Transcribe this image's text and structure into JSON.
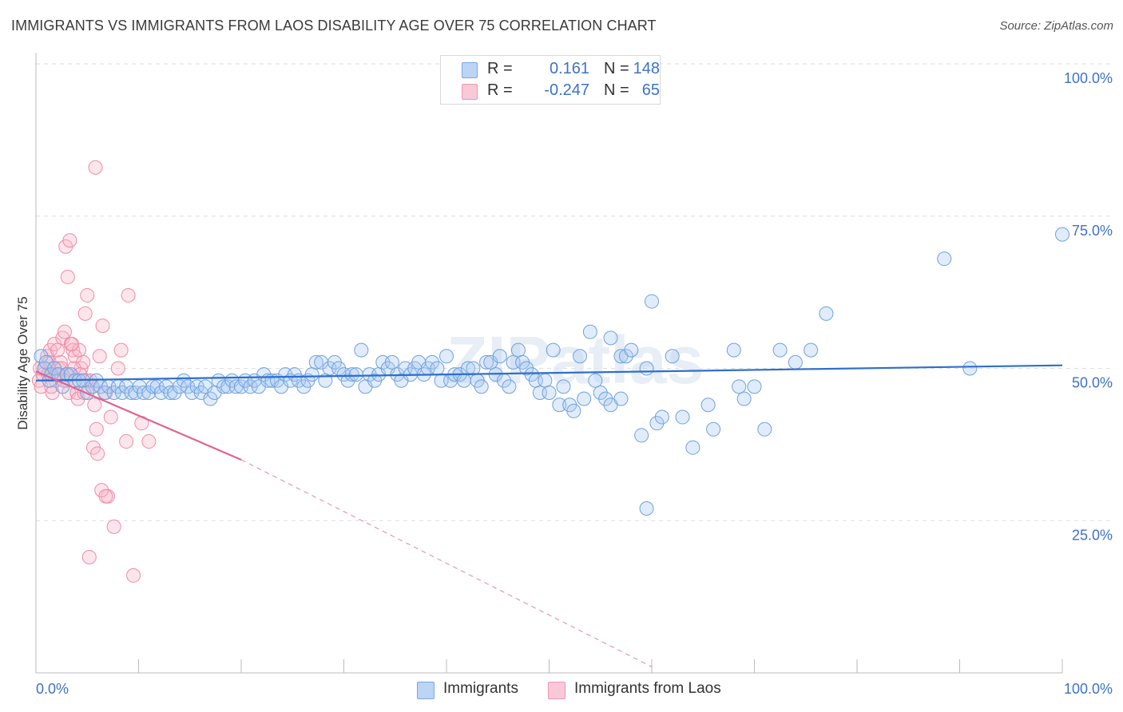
{
  "title": "IMMIGRANTS VS IMMIGRANTS FROM LAOS DISABILITY AGE OVER 75 CORRELATION CHART",
  "source": "Source: ZipAtlas.com",
  "watermark": "ZIPatlas",
  "legend": {
    "rows": [
      {
        "r_label": "R =",
        "r_value": "0.161",
        "n_label": "N =",
        "n_value": "148",
        "color": "#a9c8f0"
      },
      {
        "r_label": "R =",
        "r_value": "-0.247",
        "n_label": "N =",
        "n_value": "65",
        "color": "#f6b6c9"
      }
    ]
  },
  "bottom_legend": {
    "immigrants": "Immigrants",
    "laos": "Immigrants from Laos"
  },
  "chart_data": {
    "type": "scatter",
    "xlabel": "",
    "ylabel": "Disability Age Over 75",
    "xlim": [
      0,
      100
    ],
    "ylim": [
      0,
      100
    ],
    "x_tick_labels": {
      "left": "0.0%",
      "right": "100.0%"
    },
    "y_tick_labels": [
      "100.0%",
      "75.0%",
      "50.0%",
      "25.0%"
    ],
    "y_tick_values": [
      100,
      75,
      50,
      25
    ],
    "grid": true,
    "legend_position": "top-center",
    "series": [
      {
        "name": "Immigrants",
        "color": "#6fa1e0",
        "line_color": "#2e6fcc",
        "trend": {
          "x": [
            0,
            100
          ],
          "y": [
            48.0,
            50.5
          ]
        },
        "points": [
          [
            0.5,
            52
          ],
          [
            0.8,
            50
          ],
          [
            1.0,
            51
          ],
          [
            1.3,
            48
          ],
          [
            1.5,
            49
          ],
          [
            1.8,
            50
          ],
          [
            2.2,
            49
          ],
          [
            2.6,
            47
          ],
          [
            3.0,
            49
          ],
          [
            3.4,
            49
          ],
          [
            3.8,
            48
          ],
          [
            4.2,
            48
          ],
          [
            4.6,
            48
          ],
          [
            5.0,
            46
          ],
          [
            5.5,
            47
          ],
          [
            5.9,
            48
          ],
          [
            6.3,
            47
          ],
          [
            6.7,
            46
          ],
          [
            7.1,
            47
          ],
          [
            7.6,
            46
          ],
          [
            8.0,
            47
          ],
          [
            8.4,
            46
          ],
          [
            8.8,
            47
          ],
          [
            9.3,
            46
          ],
          [
            9.7,
            46
          ],
          [
            10.1,
            47
          ],
          [
            10.5,
            46
          ],
          [
            11.0,
            46
          ],
          [
            11.4,
            47
          ],
          [
            11.8,
            47
          ],
          [
            12.2,
            46
          ],
          [
            12.7,
            47
          ],
          [
            13.1,
            46
          ],
          [
            13.5,
            46
          ],
          [
            14.0,
            47
          ],
          [
            14.4,
            48
          ],
          [
            14.8,
            47
          ],
          [
            15.2,
            46
          ],
          [
            15.7,
            47
          ],
          [
            16.1,
            46
          ],
          [
            16.5,
            47
          ],
          [
            17.0,
            45
          ],
          [
            17.4,
            46
          ],
          [
            17.8,
            48
          ],
          [
            18.3,
            47
          ],
          [
            18.7,
            47
          ],
          [
            19.1,
            48
          ],
          [
            19.5,
            47
          ],
          [
            20.0,
            47
          ],
          [
            20.4,
            48
          ],
          [
            20.9,
            47
          ],
          [
            21.3,
            48
          ],
          [
            21.7,
            47
          ],
          [
            22.2,
            49
          ],
          [
            22.6,
            48
          ],
          [
            23.0,
            48
          ],
          [
            23.5,
            48
          ],
          [
            23.9,
            47
          ],
          [
            24.3,
            49
          ],
          [
            24.8,
            48
          ],
          [
            25.2,
            49
          ],
          [
            25.6,
            48
          ],
          [
            26.1,
            47
          ],
          [
            26.5,
            48
          ],
          [
            26.9,
            49
          ],
          [
            27.3,
            51
          ],
          [
            27.8,
            51
          ],
          [
            28.2,
            48
          ],
          [
            28.6,
            50
          ],
          [
            29.1,
            51
          ],
          [
            29.5,
            50
          ],
          [
            30.0,
            49
          ],
          [
            30.4,
            48
          ],
          [
            30.8,
            49
          ],
          [
            31.2,
            49
          ],
          [
            31.7,
            53
          ],
          [
            32.1,
            47
          ],
          [
            32.5,
            49
          ],
          [
            33.0,
            48
          ],
          [
            33.4,
            49
          ],
          [
            33.8,
            51
          ],
          [
            34.3,
            50
          ],
          [
            34.7,
            51
          ],
          [
            35.2,
            49
          ],
          [
            35.6,
            48
          ],
          [
            36.0,
            50
          ],
          [
            36.5,
            49
          ],
          [
            36.9,
            50
          ],
          [
            37.3,
            51
          ],
          [
            37.8,
            49
          ],
          [
            38.2,
            50
          ],
          [
            38.6,
            51
          ],
          [
            39.1,
            50
          ],
          [
            39.5,
            48
          ],
          [
            40.0,
            52
          ],
          [
            40.4,
            48
          ],
          [
            40.8,
            49
          ],
          [
            41.3,
            49
          ],
          [
            41.7,
            48
          ],
          [
            42.1,
            50
          ],
          [
            42.6,
            50
          ],
          [
            43.0,
            48
          ],
          [
            43.4,
            47
          ],
          [
            43.9,
            51
          ],
          [
            44.3,
            51
          ],
          [
            44.8,
            49
          ],
          [
            45.2,
            52
          ],
          [
            45.6,
            48
          ],
          [
            46.1,
            47
          ],
          [
            46.5,
            51
          ],
          [
            47.0,
            53
          ],
          [
            47.4,
            51
          ],
          [
            47.8,
            50
          ],
          [
            48.3,
            49
          ],
          [
            48.7,
            48
          ],
          [
            49.1,
            46
          ],
          [
            49.6,
            48
          ],
          [
            50.0,
            46
          ],
          [
            50.4,
            53
          ],
          [
            51.0,
            44
          ],
          [
            51.4,
            47
          ],
          [
            52.0,
            44
          ],
          [
            52.4,
            43
          ],
          [
            53.0,
            52
          ],
          [
            53.4,
            45
          ],
          [
            54.0,
            56
          ],
          [
            54.5,
            48
          ],
          [
            55.0,
            46
          ],
          [
            55.5,
            45
          ],
          [
            56.0,
            55
          ],
          [
            57.0,
            52
          ],
          [
            57.5,
            52
          ],
          [
            59.0,
            39
          ],
          [
            59.5,
            50
          ],
          [
            60.0,
            61
          ],
          [
            60.5,
            41
          ],
          [
            61.0,
            42
          ],
          [
            62.0,
            52
          ],
          [
            63.0,
            42
          ],
          [
            64.0,
            37
          ],
          [
            65.5,
            44
          ],
          [
            66.0,
            40
          ],
          [
            68.0,
            53
          ],
          [
            68.5,
            47
          ],
          [
            69.0,
            45
          ],
          [
            70.0,
            47
          ],
          [
            71.0,
            40
          ],
          [
            72.5,
            53
          ],
          [
            74.0,
            51
          ],
          [
            75.5,
            53
          ],
          [
            77.0,
            59
          ],
          [
            88.5,
            68
          ],
          [
            91.0,
            50
          ],
          [
            100.0,
            72
          ],
          [
            59.5,
            27
          ],
          [
            56.0,
            44
          ],
          [
            57.0,
            45
          ],
          [
            58.0,
            53
          ]
        ]
      },
      {
        "name": "Immigrants from Laos",
        "color": "#f08aa8",
        "line_color": "#e0638f",
        "trend": {
          "x": [
            0,
            20
          ],
          "y": [
            49.5,
            35.0
          ]
        },
        "trend_dashed": {
          "x": [
            20,
            60
          ],
          "y": [
            35.0,
            1.0
          ]
        },
        "points": [
          [
            0.3,
            48
          ],
          [
            0.5,
            47
          ],
          [
            0.7,
            49
          ],
          [
            0.9,
            50
          ],
          [
            1.1,
            52
          ],
          [
            1.3,
            51
          ],
          [
            1.4,
            53
          ],
          [
            1.6,
            46
          ],
          [
            1.8,
            54
          ],
          [
            2.0,
            49
          ],
          [
            2.2,
            50
          ],
          [
            2.4,
            51
          ],
          [
            2.6,
            55
          ],
          [
            2.8,
            56
          ],
          [
            3.0,
            48
          ],
          [
            3.2,
            46
          ],
          [
            3.4,
            54
          ],
          [
            3.6,
            53
          ],
          [
            3.8,
            52
          ],
          [
            4.0,
            46
          ],
          [
            4.2,
            53
          ],
          [
            4.4,
            50
          ],
          [
            4.6,
            51
          ],
          [
            4.8,
            59
          ],
          [
            5.0,
            62
          ],
          [
            5.3,
            48
          ],
          [
            5.5,
            47
          ],
          [
            5.7,
            44
          ],
          [
            5.9,
            40
          ],
          [
            6.2,
            52
          ],
          [
            6.5,
            57
          ],
          [
            6.8,
            46
          ],
          [
            7.0,
            29
          ],
          [
            7.3,
            42
          ],
          [
            7.6,
            24
          ],
          [
            8.0,
            50
          ],
          [
            8.3,
            53
          ],
          [
            8.8,
            38
          ],
          [
            9.0,
            62
          ],
          [
            9.5,
            16
          ],
          [
            10.3,
            41
          ],
          [
            11.0,
            38
          ],
          [
            0.4,
            50
          ],
          [
            1.2,
            49
          ],
          [
            1.9,
            48
          ],
          [
            2.5,
            50
          ],
          [
            3.1,
            49
          ],
          [
            3.7,
            50
          ],
          [
            4.3,
            49
          ],
          [
            4.9,
            48
          ],
          [
            5.6,
            37
          ],
          [
            6.0,
            36
          ],
          [
            6.4,
            30
          ],
          [
            6.8,
            29
          ],
          [
            5.2,
            19
          ],
          [
            2.9,
            70
          ],
          [
            3.3,
            71
          ],
          [
            3.1,
            65
          ],
          [
            5.8,
            83
          ],
          [
            1.5,
            47
          ],
          [
            2.1,
            53
          ],
          [
            3.5,
            54
          ],
          [
            4.1,
            45
          ],
          [
            4.7,
            46
          ],
          [
            2.7,
            48
          ]
        ]
      }
    ]
  }
}
